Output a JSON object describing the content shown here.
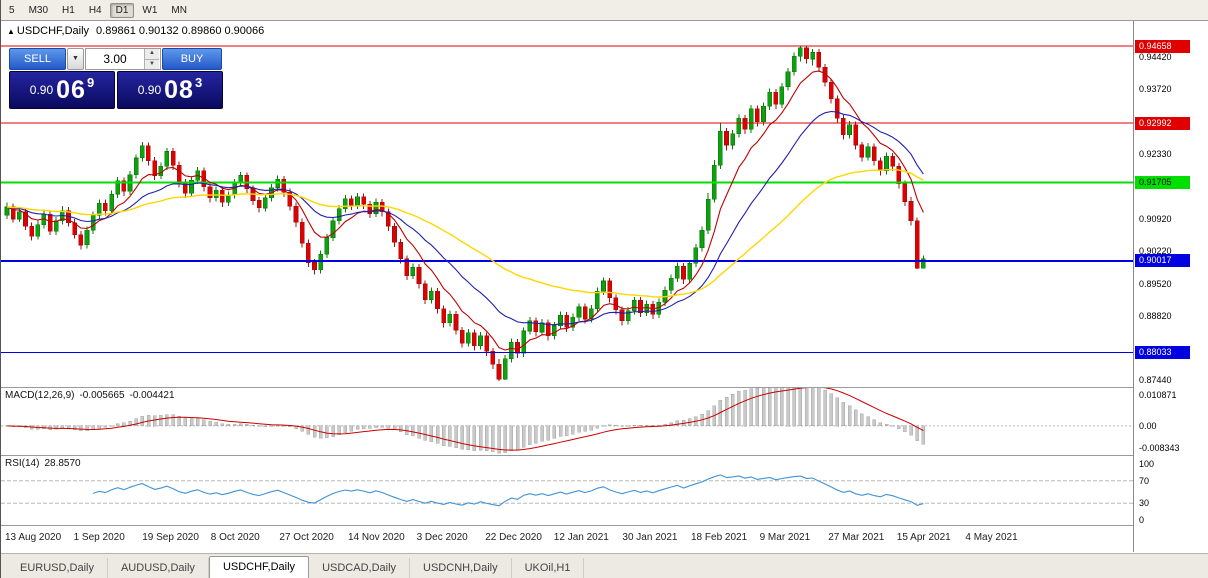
{
  "icons": {
    "title_marker": "▲",
    "dropdown_arrow": "▼",
    "spinner_up": "▲",
    "spinner_down": "▼"
  },
  "toolbar": {
    "items": [
      "5",
      "M30",
      "H1",
      "H4",
      "D1",
      "W1",
      "MN"
    ],
    "active": "D1"
  },
  "chart": {
    "symbol_period": "USDCHF,Daily",
    "ohlc_text": "0.89861 0.90132 0.89860 0.90066"
  },
  "trade_panel": {
    "sell_label": "SELL",
    "buy_label": "BUY",
    "volume": "3.00",
    "sell_price_main": "0.90",
    "sell_price_big": "06",
    "sell_price_sup": "9",
    "buy_price_main": "0.90",
    "buy_price_big": "08",
    "buy_price_sup": "3"
  },
  "tabs": {
    "items": [
      "EURUSD,Daily",
      "AUDUSD,Daily",
      "USDCHF,Daily",
      "USDCAD,Daily",
      "USDCNH,Daily",
      "UKOil,H1"
    ],
    "active_index": 2
  },
  "chart_data": {
    "type": "candlestick",
    "symbol": "USDCHF",
    "timeframe": "Daily",
    "ohlc_display": {
      "open": "0.89861",
      "high": "0.90132",
      "low": "0.89860",
      "close": "0.90066"
    },
    "ylim": [
      0.8729,
      0.952
    ],
    "x_start": 6,
    "x_step": 6.15,
    "candle_width": 4,
    "up_color": "#0fa00f",
    "up_stroke": "#0a7a0a",
    "down_color": "#e00000",
    "down_stroke": "#a01010",
    "price_axis_labels": [
      "0.94420",
      "0.93720",
      "0.92330",
      "0.90920",
      "0.90220",
      "0.89520",
      "0.88820",
      "0.87440"
    ],
    "hlines": [
      {
        "label": "0.94658",
        "price": 0.94658,
        "color": "#e00000",
        "text_color": "#ffffff",
        "width": 1
      },
      {
        "label": "0.92992",
        "price": 0.92992,
        "color": "#e00000",
        "text_color": "#ffffff",
        "width": 1
      },
      {
        "label": "0.91705",
        "price": 0.91705,
        "color": "#00e000",
        "text_color": "#000000",
        "width": 2
      },
      {
        "label": "0.90017",
        "price": 0.90017,
        "color": "#0000e0",
        "text_color": "#ffffff",
        "width": 2
      },
      {
        "label": "0.88033",
        "price": 0.88033,
        "color": "#0000e0",
        "text_color": "#ffffff",
        "width": 1
      }
    ],
    "x_axis_dates": [
      "13 Aug 2020",
      "1 Sep 2020",
      "19 Sep 2020",
      "8 Oct 2020",
      "27 Oct 2020",
      "14 Nov 2020",
      "3 Dec 2020",
      "22 Dec 2020",
      "12 Jan 2021",
      "30 Jan 2021",
      "18 Feb 2021",
      "9 Mar 2021",
      "27 Mar 2021",
      "15 Apr 2021",
      "4 May 2021"
    ],
    "moving_averages": [
      {
        "type": "EMA",
        "period": 8,
        "color": "#c00000",
        "width": 1.1
      },
      {
        "type": "EMA",
        "period": 20,
        "color": "#2020b0",
        "width": 1.1
      },
      {
        "type": "EMA",
        "period": 50,
        "color": "#ffd700",
        "width": 1.4
      }
    ],
    "indicators": {
      "macd": {
        "label": "MACD(12,26,9)",
        "value_main": "-0.005665",
        "value_signal": "-0.004421",
        "axis_labels": [
          "0.010871",
          "0.00",
          "-0.008343"
        ],
        "range_max": 0.010871,
        "range_min": -0.008343,
        "fast": 12,
        "slow": 26,
        "signal": 9,
        "histogram_color": "#c9c9c9",
        "histogram_stroke": "#9a9a9a",
        "signal_color": "#cc0000"
      },
      "rsi": {
        "label": "RSI(14)",
        "value": "28.8570",
        "period": 14,
        "axis_labels": [
          "100",
          "70",
          "30",
          "0"
        ],
        "levels": [
          70,
          30
        ],
        "line_color": "#3f94d8"
      }
    },
    "candles": [
      [
        0.91,
        0.9128,
        0.9092,
        0.9118
      ],
      [
        0.9118,
        0.9126,
        0.9084,
        0.9092
      ],
      [
        0.9092,
        0.9118,
        0.9086,
        0.9108
      ],
      [
        0.9108,
        0.9115,
        0.9068,
        0.9076
      ],
      [
        0.9076,
        0.9084,
        0.9046,
        0.9055
      ],
      [
        0.9055,
        0.909,
        0.9048,
        0.908
      ],
      [
        0.908,
        0.9112,
        0.9072,
        0.9102
      ],
      [
        0.9102,
        0.911,
        0.9058,
        0.9066
      ],
      [
        0.9066,
        0.9096,
        0.9058,
        0.9088
      ],
      [
        0.9088,
        0.912,
        0.908,
        0.911
      ],
      [
        0.911,
        0.9118,
        0.9076,
        0.9084
      ],
      [
        0.9084,
        0.9092,
        0.905,
        0.9058
      ],
      [
        0.9058,
        0.9066,
        0.9026,
        0.9036
      ],
      [
        0.9036,
        0.9076,
        0.9028,
        0.9068
      ],
      [
        0.9068,
        0.9108,
        0.906,
        0.91
      ],
      [
        0.91,
        0.9134,
        0.9092,
        0.9126
      ],
      [
        0.9126,
        0.9134,
        0.91,
        0.911
      ],
      [
        0.911,
        0.9154,
        0.9102,
        0.9146
      ],
      [
        0.9146,
        0.9183,
        0.9138,
        0.9175
      ],
      [
        0.9175,
        0.9182,
        0.9142,
        0.9152
      ],
      [
        0.9152,
        0.9196,
        0.9144,
        0.9188
      ],
      [
        0.9188,
        0.9232,
        0.918,
        0.9224
      ],
      [
        0.9224,
        0.9258,
        0.9216,
        0.925
      ],
      [
        0.925,
        0.9257,
        0.9208,
        0.9218
      ],
      [
        0.9218,
        0.9226,
        0.9176,
        0.9186
      ],
      [
        0.9186,
        0.9214,
        0.9178,
        0.9206
      ],
      [
        0.9206,
        0.9246,
        0.9198,
        0.9238
      ],
      [
        0.9238,
        0.9245,
        0.9198,
        0.9208
      ],
      [
        0.9208,
        0.9216,
        0.916,
        0.917
      ],
      [
        0.917,
        0.9178,
        0.9138,
        0.9148
      ],
      [
        0.9148,
        0.9184,
        0.914,
        0.9176
      ],
      [
        0.9176,
        0.9204,
        0.9168,
        0.9196
      ],
      [
        0.9196,
        0.9203,
        0.9152,
        0.9162
      ],
      [
        0.9162,
        0.917,
        0.9128,
        0.9138
      ],
      [
        0.9138,
        0.9162,
        0.913,
        0.9154
      ],
      [
        0.9154,
        0.9161,
        0.9118,
        0.9128
      ],
      [
        0.9128,
        0.9152,
        0.912,
        0.9144
      ],
      [
        0.9144,
        0.9178,
        0.9136,
        0.917
      ],
      [
        0.917,
        0.9194,
        0.9162,
        0.9186
      ],
      [
        0.9186,
        0.9193,
        0.9148,
        0.9158
      ],
      [
        0.9158,
        0.9165,
        0.9122,
        0.9132
      ],
      [
        0.9132,
        0.914,
        0.9106,
        0.9116
      ],
      [
        0.9116,
        0.9146,
        0.9108,
        0.9138
      ],
      [
        0.9138,
        0.9168,
        0.913,
        0.916
      ],
      [
        0.916,
        0.9186,
        0.9152,
        0.9178
      ],
      [
        0.9178,
        0.9185,
        0.914,
        0.915
      ],
      [
        0.915,
        0.9158,
        0.911,
        0.912
      ],
      [
        0.912,
        0.9128,
        0.9075,
        0.9085
      ],
      [
        0.9085,
        0.9093,
        0.903,
        0.904
      ],
      [
        0.904,
        0.9048,
        0.8988,
        0.8998
      ],
      [
        0.8998,
        0.9006,
        0.8972,
        0.8982
      ],
      [
        0.8982,
        0.9024,
        0.8974,
        0.9016
      ],
      [
        0.9016,
        0.906,
        0.9008,
        0.9052
      ],
      [
        0.9052,
        0.9096,
        0.9044,
        0.9088
      ],
      [
        0.9088,
        0.9122,
        0.908,
        0.9114
      ],
      [
        0.9114,
        0.9144,
        0.9106,
        0.9136
      ],
      [
        0.9136,
        0.9143,
        0.9112,
        0.9122
      ],
      [
        0.9122,
        0.9148,
        0.9114,
        0.914
      ],
      [
        0.914,
        0.9147,
        0.9114,
        0.9124
      ],
      [
        0.9124,
        0.9131,
        0.9094,
        0.9104
      ],
      [
        0.9104,
        0.9136,
        0.9096,
        0.9128
      ],
      [
        0.9128,
        0.9135,
        0.9098,
        0.9108
      ],
      [
        0.9108,
        0.9115,
        0.9066,
        0.9076
      ],
      [
        0.9076,
        0.9083,
        0.9032,
        0.9042
      ],
      [
        0.9042,
        0.9049,
        0.8996,
        0.9006
      ],
      [
        0.9006,
        0.9013,
        0.896,
        0.897
      ],
      [
        0.897,
        0.8996,
        0.8962,
        0.8988
      ],
      [
        0.8988,
        0.8995,
        0.8942,
        0.8952
      ],
      [
        0.8952,
        0.8959,
        0.8908,
        0.8918
      ],
      [
        0.8918,
        0.8944,
        0.891,
        0.8936
      ],
      [
        0.8936,
        0.8943,
        0.8888,
        0.8898
      ],
      [
        0.8898,
        0.8905,
        0.8858,
        0.8868
      ],
      [
        0.8868,
        0.8894,
        0.886,
        0.8886
      ],
      [
        0.8886,
        0.8893,
        0.8842,
        0.8852
      ],
      [
        0.8852,
        0.8859,
        0.8814,
        0.8824
      ],
      [
        0.8824,
        0.8854,
        0.8816,
        0.8846
      ],
      [
        0.8846,
        0.8853,
        0.8808,
        0.8818
      ],
      [
        0.8818,
        0.8848,
        0.881,
        0.884
      ],
      [
        0.884,
        0.8847,
        0.8796,
        0.8806
      ],
      [
        0.8806,
        0.8813,
        0.8768,
        0.8778
      ],
      [
        0.8778,
        0.879,
        0.8742,
        0.8746
      ],
      [
        0.8746,
        0.8798,
        0.8744,
        0.879
      ],
      [
        0.879,
        0.8834,
        0.8782,
        0.8826
      ],
      [
        0.8826,
        0.8833,
        0.8792,
        0.8802
      ],
      [
        0.8802,
        0.8858,
        0.8794,
        0.885
      ],
      [
        0.885,
        0.888,
        0.8842,
        0.8872
      ],
      [
        0.8872,
        0.8879,
        0.8838,
        0.8848
      ],
      [
        0.8848,
        0.8876,
        0.884,
        0.8868
      ],
      [
        0.8868,
        0.8875,
        0.883,
        0.884
      ],
      [
        0.884,
        0.887,
        0.8832,
        0.8862
      ],
      [
        0.8862,
        0.8892,
        0.8854,
        0.8884
      ],
      [
        0.8884,
        0.8891,
        0.8848,
        0.8858
      ],
      [
        0.8858,
        0.8888,
        0.885,
        0.888
      ],
      [
        0.888,
        0.891,
        0.8872,
        0.8902
      ],
      [
        0.8902,
        0.8909,
        0.8866,
        0.8876
      ],
      [
        0.8876,
        0.8906,
        0.8868,
        0.8898
      ],
      [
        0.8898,
        0.8944,
        0.889,
        0.8936
      ],
      [
        0.8936,
        0.8966,
        0.8928,
        0.8958
      ],
      [
        0.8958,
        0.8965,
        0.8912,
        0.8922
      ],
      [
        0.8922,
        0.8929,
        0.8886,
        0.8896
      ],
      [
        0.8896,
        0.8903,
        0.8862,
        0.8872
      ],
      [
        0.8872,
        0.8902,
        0.8864,
        0.8894
      ],
      [
        0.8894,
        0.8924,
        0.8886,
        0.8916
      ],
      [
        0.8916,
        0.8923,
        0.888,
        0.889
      ],
      [
        0.889,
        0.8916,
        0.8882,
        0.8908
      ],
      [
        0.8908,
        0.8915,
        0.8876,
        0.8886
      ],
      [
        0.8886,
        0.892,
        0.8878,
        0.8912
      ],
      [
        0.8912,
        0.8946,
        0.8904,
        0.8938
      ],
      [
        0.8938,
        0.8972,
        0.893,
        0.8964
      ],
      [
        0.8964,
        0.8998,
        0.8956,
        0.899
      ],
      [
        0.899,
        0.8997,
        0.8952,
        0.8962
      ],
      [
        0.8962,
        0.9004,
        0.8954,
        0.8996
      ],
      [
        0.8996,
        0.9038,
        0.8988,
        0.903
      ],
      [
        0.903,
        0.9076,
        0.9022,
        0.9068
      ],
      [
        0.9068,
        0.9148,
        0.906,
        0.9135
      ],
      [
        0.9135,
        0.922,
        0.9128,
        0.9208
      ],
      [
        0.9208,
        0.93,
        0.92,
        0.9282
      ],
      [
        0.9282,
        0.9289,
        0.924,
        0.9252
      ],
      [
        0.9252,
        0.9284,
        0.9242,
        0.9276
      ],
      [
        0.9276,
        0.9318,
        0.9268,
        0.931
      ],
      [
        0.931,
        0.9317,
        0.9276,
        0.9286
      ],
      [
        0.9286,
        0.9338,
        0.9278,
        0.933
      ],
      [
        0.933,
        0.9337,
        0.9292,
        0.9302
      ],
      [
        0.9302,
        0.9344,
        0.9294,
        0.9336
      ],
      [
        0.9336,
        0.9374,
        0.9328,
        0.9366
      ],
      [
        0.9366,
        0.9373,
        0.933,
        0.934
      ],
      [
        0.934,
        0.9386,
        0.9332,
        0.9378
      ],
      [
        0.9378,
        0.9418,
        0.937,
        0.941
      ],
      [
        0.941,
        0.9452,
        0.9402,
        0.9444
      ],
      [
        0.9444,
        0.9466,
        0.9432,
        0.9462
      ],
      [
        0.9462,
        0.9465,
        0.9428,
        0.9438
      ],
      [
        0.9438,
        0.946,
        0.9424,
        0.9452
      ],
      [
        0.9452,
        0.9459,
        0.941,
        0.942
      ],
      [
        0.942,
        0.9427,
        0.9378,
        0.9388
      ],
      [
        0.9388,
        0.9395,
        0.9342,
        0.9352
      ],
      [
        0.9352,
        0.9359,
        0.93,
        0.931
      ],
      [
        0.931,
        0.9317,
        0.9264,
        0.9274
      ],
      [
        0.9274,
        0.9304,
        0.9266,
        0.9296
      ],
      [
        0.9296,
        0.9303,
        0.9242,
        0.9252
      ],
      [
        0.9252,
        0.9259,
        0.9216,
        0.9226
      ],
      [
        0.9226,
        0.9256,
        0.9218,
        0.9248
      ],
      [
        0.9248,
        0.9255,
        0.9208,
        0.9218
      ],
      [
        0.9218,
        0.9225,
        0.9186,
        0.9196
      ],
      [
        0.9196,
        0.9236,
        0.9188,
        0.9228
      ],
      [
        0.9228,
        0.9235,
        0.9196,
        0.9206
      ],
      [
        0.9206,
        0.9213,
        0.9158,
        0.9168
      ],
      [
        0.9168,
        0.9175,
        0.912,
        0.913
      ],
      [
        0.913,
        0.914,
        0.9078,
        0.9088
      ],
      [
        0.9088,
        0.9095,
        0.8984,
        0.8986
      ],
      [
        0.89861,
        0.90132,
        0.8986,
        0.90066
      ]
    ]
  }
}
